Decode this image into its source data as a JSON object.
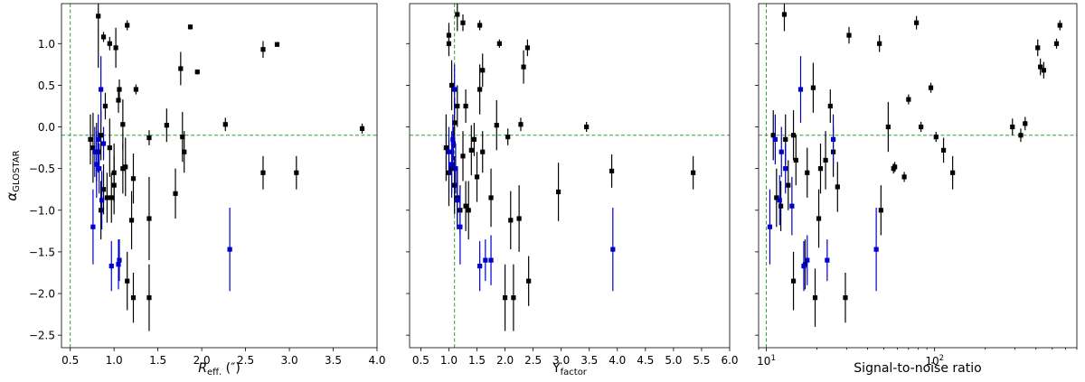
{
  "chart_data": [
    {
      "type": "scatter",
      "xlabel_main": "R",
      "xlabel_sub": "eff.",
      "xlabel_tail": " (″)",
      "ylabel_main": "α",
      "ylabel_sub": "GLOSTAR",
      "xscale": "linear",
      "xlim": [
        0.4,
        4.0
      ],
      "ylim": [
        -2.65,
        1.48
      ],
      "xticks": [
        0.5,
        1.0,
        1.5,
        2.0,
        2.5,
        3.0,
        3.5,
        4.0
      ],
      "xtick_labels": [
        "0.5",
        "1.0",
        "1.5",
        "2.0",
        "2.5",
        "3.0",
        "3.5",
        "4.0"
      ],
      "yticks": [
        1.0,
        0.5,
        0.0,
        -0.5,
        -1.0,
        -1.5,
        -2.0,
        -2.5
      ],
      "ytick_labels": [
        "1.0",
        "0.5",
        "0.0",
        "−0.5",
        "−1.0",
        "−1.5",
        "−2.0",
        "−2.5"
      ],
      "ref_lines": {
        "vline": 0.5,
        "hline": -0.1,
        "color": "#2ca02c"
      },
      "series": [
        {
          "color": "#000000",
          "points": [
            [
              0.82,
              1.33,
              0.62
            ],
            [
              0.88,
              1.08,
              0.06
            ],
            [
              0.95,
              1.0,
              0.08
            ],
            [
              1.02,
              0.95,
              0.24
            ],
            [
              1.15,
              1.22,
              0.06
            ],
            [
              1.25,
              0.45,
              0.06
            ],
            [
              1.87,
              1.2,
              0.03
            ],
            [
              1.95,
              0.66,
              0.03
            ],
            [
              2.7,
              0.93,
              0.1
            ],
            [
              2.86,
              0.99,
              0.03
            ],
            [
              1.76,
              0.7,
              0.2
            ],
            [
              1.05,
              0.32,
              0.15
            ],
            [
              1.06,
              0.45,
              0.12
            ],
            [
              1.1,
              0.03,
              0.3
            ],
            [
              0.9,
              0.25,
              0.16
            ],
            [
              1.6,
              0.02,
              0.2
            ],
            [
              2.27,
              0.03,
              0.08
            ],
            [
              3.83,
              -0.02,
              0.06
            ],
            [
              1.4,
              -0.13,
              0.09
            ],
            [
              1.78,
              -0.12,
              0.3
            ],
            [
              1.8,
              -0.3,
              0.25
            ],
            [
              0.73,
              -0.15,
              0.3
            ],
            [
              0.76,
              -0.25,
              0.42
            ],
            [
              0.8,
              -0.3,
              0.35
            ],
            [
              0.85,
              -0.1,
              0.3
            ],
            [
              0.95,
              -0.25,
              0.35
            ],
            [
              1.0,
              -0.55,
              0.35
            ],
            [
              1.1,
              -0.5,
              0.3
            ],
            [
              1.13,
              -0.48,
              0.35
            ],
            [
              1.22,
              -0.62,
              0.3
            ],
            [
              0.88,
              -0.75,
              0.3
            ],
            [
              0.92,
              -0.85,
              0.3
            ],
            [
              0.97,
              -0.85,
              0.3
            ],
            [
              0.85,
              -1.0,
              0.35
            ],
            [
              1.0,
              -0.7,
              0.35
            ],
            [
              1.7,
              -0.8,
              0.3
            ],
            [
              2.7,
              -0.55,
              0.2
            ],
            [
              3.08,
              -0.55,
              0.2
            ],
            [
              1.2,
              -1.12,
              0.35
            ],
            [
              1.4,
              -1.1,
              0.5
            ],
            [
              1.15,
              -1.85,
              0.35
            ],
            [
              1.22,
              -2.05,
              0.3
            ],
            [
              1.4,
              -2.05,
              0.4
            ],
            [
              0.82,
              -0.3,
              0.25
            ]
          ]
        },
        {
          "color": "#0000cc",
          "points": [
            [
              0.85,
              0.45,
              0.4
            ],
            [
              0.78,
              -0.3,
              0.3
            ],
            [
              0.8,
              -0.45,
              0.4
            ],
            [
              0.82,
              -0.15,
              0.3
            ],
            [
              0.83,
              -0.5,
              0.3
            ],
            [
              0.86,
              -0.88,
              0.35
            ],
            [
              0.76,
              -1.2,
              0.45
            ],
            [
              0.97,
              -1.67,
              0.3
            ],
            [
              1.06,
              -1.6,
              0.25
            ],
            [
              1.05,
              -1.65,
              0.3
            ],
            [
              2.32,
              -1.47,
              0.5
            ],
            [
              0.88,
              -0.2,
              0.2
            ]
          ]
        }
      ]
    },
    {
      "type": "scatter",
      "xlabel_main": "Y",
      "xlabel_sub": "factor",
      "xlabel_tail": "",
      "xscale": "linear",
      "xlim": [
        0.3,
        6.0
      ],
      "ylim": [
        -2.65,
        1.48
      ],
      "xticks": [
        0.5,
        1.0,
        1.5,
        2.0,
        2.5,
        3.0,
        3.5,
        4.0,
        4.5,
        5.0,
        5.5,
        6.0
      ],
      "xtick_labels": [
        "0.5",
        "1.0",
        "1.5",
        "2.0",
        "2.5",
        "3.0",
        "3.5",
        "4.0",
        "4.5",
        "5.0",
        "5.5",
        "6.0"
      ],
      "yticks": [
        1.0,
        0.5,
        0.0,
        -0.5,
        -1.0,
        -1.5,
        -2.0,
        -2.5
      ],
      "ref_lines": {
        "vline": 1.1,
        "hline": -0.1,
        "color": "#2ca02c"
      },
      "series": [
        {
          "color": "#000000",
          "points": [
            [
              1.0,
              1.1,
              0.15
            ],
            [
              1.0,
              1.0,
              0.15
            ],
            [
              1.15,
              1.35,
              0.2
            ],
            [
              1.25,
              1.25,
              0.1
            ],
            [
              1.55,
              1.22,
              0.06
            ],
            [
              1.9,
              1.0,
              0.05
            ],
            [
              2.4,
              0.95,
              0.1
            ],
            [
              2.33,
              0.72,
              0.2
            ],
            [
              1.6,
              0.68,
              0.2
            ],
            [
              1.55,
              0.45,
              0.3
            ],
            [
              1.05,
              0.5,
              0.3
            ],
            [
              1.15,
              0.25,
              0.25
            ],
            [
              1.1,
              0.05,
              0.3
            ],
            [
              1.3,
              0.25,
              0.2
            ],
            [
              1.85,
              0.02,
              0.3
            ],
            [
              2.28,
              0.03,
              0.08
            ],
            [
              3.45,
              0.0,
              0.06
            ],
            [
              2.05,
              -0.12,
              0.1
            ],
            [
              1.45,
              -0.15,
              0.2
            ],
            [
              1.4,
              -0.28,
              0.3
            ],
            [
              1.6,
              -0.3,
              0.25
            ],
            [
              0.95,
              -0.25,
              0.4
            ],
            [
              1.0,
              -0.55,
              0.4
            ],
            [
              1.05,
              -0.5,
              0.3
            ],
            [
              1.1,
              -0.7,
              0.35
            ],
            [
              1.15,
              -0.85,
              0.35
            ],
            [
              1.2,
              -1.0,
              0.3
            ],
            [
              1.3,
              -0.95,
              0.3
            ],
            [
              1.35,
              -1.0,
              0.35
            ],
            [
              1.5,
              -0.6,
              0.3
            ],
            [
              1.75,
              -0.85,
              0.35
            ],
            [
              2.1,
              -1.12,
              0.35
            ],
            [
              2.25,
              -1.1,
              0.4
            ],
            [
              2.95,
              -0.78,
              0.35
            ],
            [
              3.9,
              -0.53,
              0.2
            ],
            [
              5.35,
              -0.55,
              0.2
            ],
            [
              2.0,
              -2.05,
              0.4
            ],
            [
              2.15,
              -2.05,
              0.4
            ],
            [
              2.42,
              -1.85,
              0.3
            ],
            [
              1.25,
              -0.35,
              0.3
            ]
          ]
        },
        {
          "color": "#0000cc",
          "points": [
            [
              1.1,
              0.45,
              0.3
            ],
            [
              1.0,
              -0.3,
              0.3
            ],
            [
              1.05,
              -0.45,
              0.4
            ],
            [
              1.07,
              -0.15,
              0.3
            ],
            [
              1.12,
              -0.5,
              0.3
            ],
            [
              1.15,
              -0.88,
              0.35
            ],
            [
              1.2,
              -1.2,
              0.45
            ],
            [
              1.55,
              -1.67,
              0.3
            ],
            [
              1.65,
              -1.6,
              0.25
            ],
            [
              1.75,
              -1.6,
              0.3
            ],
            [
              3.92,
              -1.47,
              0.5
            ],
            [
              1.08,
              -0.2,
              0.2
            ]
          ]
        }
      ]
    },
    {
      "type": "scatter",
      "xlabel_main": "Signal-to-noise ratio",
      "xlabel_sub": "",
      "xlabel_tail": "",
      "xscale": "log",
      "xlim": [
        9.0,
        700.0
      ],
      "ylim": [
        -2.65,
        1.48
      ],
      "xtick_major": [
        10,
        100
      ],
      "xtick_labels": [
        "10",
        "10"
      ],
      "xtick_exps": [
        "1",
        "2"
      ],
      "yticks": [
        1.0,
        0.5,
        0.0,
        -0.5,
        -1.0,
        -1.5,
        -2.0,
        -2.5
      ],
      "ref_lines": {
        "vline": 10.0,
        "hline": -0.1,
        "color": "#2ca02c"
      },
      "series": [
        {
          "color": "#000000",
          "points": [
            [
              12.8,
              1.35,
              0.2
            ],
            [
              31.0,
              1.1,
              0.1
            ],
            [
              47.0,
              1.0,
              0.1
            ],
            [
              78.0,
              1.25,
              0.08
            ],
            [
              95.0,
              0.47,
              0.06
            ],
            [
              70.0,
              0.33,
              0.06
            ],
            [
              19.0,
              0.47,
              0.3
            ],
            [
              24.0,
              0.25,
              0.2
            ],
            [
              53.0,
              0.0,
              0.3
            ],
            [
              83.0,
              0.0,
              0.06
            ],
            [
              11.0,
              -0.1,
              0.3
            ],
            [
              13.0,
              -0.15,
              0.3
            ],
            [
              14.5,
              -0.1,
              0.3
            ],
            [
              25.0,
              -0.3,
              0.3
            ],
            [
              21.0,
              -0.5,
              0.3
            ],
            [
              22.5,
              -0.4,
              0.35
            ],
            [
              57.0,
              -0.5,
              0.06
            ],
            [
              58.0,
              -0.48,
              0.06
            ],
            [
              66.0,
              -0.6,
              0.06
            ],
            [
              102.0,
              -0.12,
              0.06
            ],
            [
              113.0,
              -0.28,
              0.15
            ],
            [
              128.0,
              -0.55,
              0.2
            ],
            [
              290.0,
              0.0,
              0.1
            ],
            [
              325.0,
              -0.1,
              0.08
            ],
            [
              345.0,
              0.04,
              0.08
            ],
            [
              410.0,
              0.95,
              0.1
            ],
            [
              425.0,
              0.72,
              0.1
            ],
            [
              445.0,
              0.68,
              0.1
            ],
            [
              530.0,
              1.0,
              0.06
            ],
            [
              555.0,
              1.22,
              0.06
            ],
            [
              11.5,
              -0.85,
              0.35
            ],
            [
              12.2,
              -0.95,
              0.3
            ],
            [
              13.5,
              -0.7,
              0.3
            ],
            [
              15.0,
              -0.4,
              0.3
            ],
            [
              17.5,
              -0.55,
              0.3
            ],
            [
              20.5,
              -1.1,
              0.35
            ],
            [
              26.5,
              -0.72,
              0.3
            ],
            [
              48.0,
              -1.0,
              0.3
            ],
            [
              14.5,
              -1.85,
              0.35
            ],
            [
              19.5,
              -2.05,
              0.35
            ],
            [
              29.5,
              -2.05,
              0.3
            ],
            [
              17.0,
              -1.65,
              0.3
            ]
          ]
        },
        {
          "color": "#0000cc",
          "points": [
            [
              16.0,
              0.45,
              0.4
            ],
            [
              25.0,
              -0.15,
              0.3
            ],
            [
              11.3,
              -0.15,
              0.3
            ],
            [
              12.3,
              -0.3,
              0.3
            ],
            [
              13.0,
              -0.5,
              0.3
            ],
            [
              14.2,
              -0.95,
              0.35
            ],
            [
              10.5,
              -1.2,
              0.45
            ],
            [
              16.7,
              -1.67,
              0.3
            ],
            [
              23.0,
              -1.6,
              0.25
            ],
            [
              17.5,
              -1.6,
              0.3
            ],
            [
              45.0,
              -1.47,
              0.5
            ],
            [
              12.0,
              -0.88,
              0.3
            ]
          ]
        }
      ]
    }
  ]
}
